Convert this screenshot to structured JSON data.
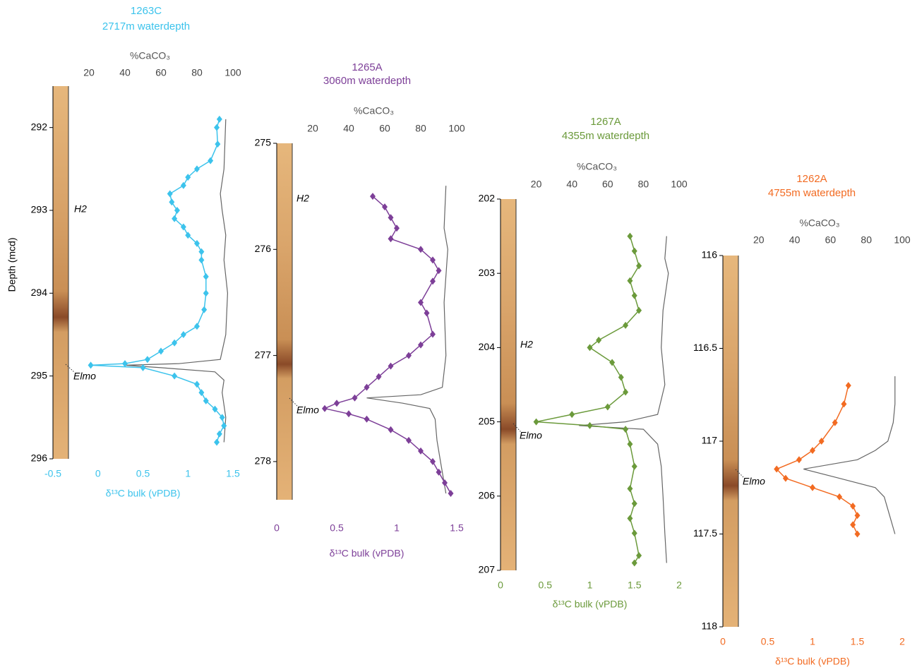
{
  "chart_data": [
    {
      "type": "line",
      "title": "1263C",
      "subtitle": "2717m waterdepth",
      "ylabel": "Depth (mcd)",
      "xlabel": "δ¹³C bulk (vPDB)",
      "x2label": "%CaCO₃",
      "ylim": [
        291.5,
        296
      ],
      "yticks": [
        292,
        293,
        294,
        295,
        296
      ],
      "xlim": [
        -0.5,
        1.5
      ],
      "xticks": [
        -0.5,
        0,
        0.5,
        1,
        1.5
      ],
      "x2lim": [
        0,
        100
      ],
      "x2ticks": [
        20,
        40,
        60,
        80,
        100
      ],
      "annotations": [
        "H2",
        "Elmo"
      ],
      "series": [
        {
          "color": "#3cc3ec",
          "axis": "x",
          "depth": [
            291.9,
            292.0,
            292.2,
            292.4,
            292.5,
            292.6,
            292.7,
            292.8,
            292.9,
            293.0,
            293.1,
            293.2,
            293.3,
            293.4,
            293.5,
            293.6,
            293.8,
            294.0,
            294.2,
            294.4,
            294.5,
            294.6,
            294.7,
            294.8,
            294.85,
            294.87,
            294.9,
            295.0,
            295.1,
            295.2,
            295.3,
            295.4,
            295.5,
            295.6,
            295.7,
            295.8
          ],
          "values": [
            1.35,
            1.32,
            1.33,
            1.25,
            1.1,
            1.0,
            0.95,
            0.8,
            0.82,
            0.88,
            0.85,
            0.95,
            1.0,
            1.1,
            1.15,
            1.15,
            1.2,
            1.2,
            1.18,
            1.1,
            0.95,
            0.85,
            0.7,
            0.55,
            0.3,
            -0.08,
            0.5,
            0.85,
            1.1,
            1.15,
            1.2,
            1.3,
            1.38,
            1.4,
            1.35,
            1.32
          ]
        },
        {
          "color": "#666666",
          "axis": "x2",
          "depth": [
            291.9,
            292.5,
            292.8,
            293.0,
            293.3,
            293.6,
            294.0,
            294.5,
            294.8,
            294.85,
            294.87,
            294.9,
            294.95,
            295.05,
            295.2,
            295.5,
            295.8
          ],
          "values": [
            96,
            95,
            93,
            94,
            96,
            95,
            97,
            96,
            93,
            70,
            40,
            60,
            90,
            95,
            94,
            96,
            95
          ]
        }
      ]
    },
    {
      "type": "line",
      "title": "1265A",
      "subtitle": "3060m waterdepth",
      "xlabel": "δ¹³C bulk (vPDB)",
      "x2label": "%CaCO₃",
      "ylim": [
        275,
        278.36
      ],
      "yticks": [
        275,
        276,
        277,
        278
      ],
      "xlim": [
        0,
        1.5
      ],
      "xticks": [
        0,
        0.5,
        1,
        1.5
      ],
      "x2lim": [
        0,
        100
      ],
      "x2ticks": [
        20,
        40,
        60,
        80,
        100
      ],
      "annotations": [
        "H2",
        "Elmo"
      ],
      "series": [
        {
          "color": "#7d3f98",
          "axis": "x",
          "depth": [
            275.5,
            275.6,
            275.7,
            275.8,
            275.9,
            276.0,
            276.1,
            276.2,
            276.3,
            276.5,
            276.6,
            276.8,
            276.9,
            277.0,
            277.1,
            277.2,
            277.3,
            277.4,
            277.45,
            277.5,
            277.55,
            277.6,
            277.7,
            277.8,
            277.9,
            278.0,
            278.1,
            278.2,
            278.3
          ],
          "values": [
            0.8,
            0.9,
            0.95,
            1.0,
            0.95,
            1.2,
            1.3,
            1.35,
            1.3,
            1.2,
            1.25,
            1.3,
            1.2,
            1.1,
            0.95,
            0.85,
            0.75,
            0.65,
            0.5,
            0.4,
            0.6,
            0.75,
            0.95,
            1.1,
            1.2,
            1.3,
            1.35,
            1.4,
            1.45
          ]
        },
        {
          "color": "#666666",
          "axis": "x2",
          "depth": [
            275.4,
            275.8,
            276.0,
            276.5,
            277.0,
            277.3,
            277.37,
            277.4,
            277.45,
            277.5,
            277.6,
            277.8,
            278.0,
            278.3
          ],
          "values": [
            94,
            93,
            95,
            93,
            94,
            92,
            80,
            50,
            70,
            85,
            88,
            89,
            91,
            94
          ]
        }
      ]
    },
    {
      "type": "line",
      "title": "1267A",
      "subtitle": "4355m waterdepth",
      "xlabel": "δ¹³C bulk (vPDB)",
      "x2label": "%CaCO₃",
      "ylim": [
        202,
        207
      ],
      "yticks": [
        202,
        203,
        204,
        205,
        206,
        207
      ],
      "xlim": [
        0,
        2
      ],
      "xticks": [
        0,
        0.5,
        1,
        1.5,
        2
      ],
      "x2lim": [
        0,
        100
      ],
      "x2ticks": [
        20,
        40,
        60,
        80,
        100
      ],
      "annotations": [
        "H2",
        "Elmo"
      ],
      "series": [
        {
          "color": "#6b9a3b",
          "axis": "x",
          "depth": [
            202.5,
            202.7,
            202.9,
            203.1,
            203.3,
            203.5,
            203.7,
            203.9,
            204.0,
            204.2,
            204.4,
            204.6,
            204.8,
            204.9,
            205.0,
            205.05,
            205.1,
            205.3,
            205.6,
            205.9,
            206.1,
            206.3,
            206.5,
            206.8,
            206.9
          ],
          "values": [
            1.45,
            1.5,
            1.55,
            1.45,
            1.5,
            1.55,
            1.4,
            1.1,
            1.0,
            1.25,
            1.35,
            1.4,
            1.2,
            0.8,
            0.4,
            1.0,
            1.4,
            1.45,
            1.5,
            1.45,
            1.5,
            1.45,
            1.5,
            1.55,
            1.5
          ]
        },
        {
          "color": "#666666",
          "axis": "x2",
          "depth": [
            202.5,
            202.8,
            203.0,
            203.5,
            204.0,
            204.5,
            204.9,
            205.0,
            205.05,
            205.1,
            205.3,
            205.6,
            206.0,
            206.5,
            206.9
          ],
          "values": [
            93,
            92,
            94,
            91,
            90,
            92,
            88,
            70,
            44,
            80,
            88,
            90,
            91,
            92,
            93
          ]
        }
      ]
    },
    {
      "type": "line",
      "title": "1262A",
      "subtitle": "4755m waterdepth",
      "xlabel": "δ¹³C bulk (vPDB)",
      "x2label": "%CaCO₃",
      "ylim": [
        116,
        118
      ],
      "yticks": [
        116,
        116.5,
        117,
        117.5,
        118
      ],
      "xlim": [
        0,
        2
      ],
      "xticks": [
        0,
        0.5,
        1,
        1.5,
        2
      ],
      "x2lim": [
        0,
        100
      ],
      "x2ticks": [
        20,
        40,
        60,
        80,
        100
      ],
      "annotations": [
        "Elmo"
      ],
      "series": [
        {
          "color": "#f26b22",
          "axis": "x",
          "depth": [
            116.7,
            116.8,
            116.9,
            117.0,
            117.05,
            117.1,
            117.15,
            117.2,
            117.25,
            117.3,
            117.35,
            117.4,
            117.45,
            117.5
          ],
          "values": [
            1.4,
            1.35,
            1.25,
            1.1,
            1.0,
            0.85,
            0.6,
            0.7,
            1.0,
            1.3,
            1.45,
            1.5,
            1.45,
            1.5
          ]
        },
        {
          "color": "#666666",
          "axis": "x2",
          "depth": [
            116.65,
            116.8,
            116.9,
            117.0,
            117.05,
            117.1,
            117.15,
            117.2,
            117.25,
            117.3,
            117.4,
            117.5
          ],
          "values": [
            96,
            96,
            95,
            92,
            85,
            75,
            45,
            65,
            85,
            90,
            93,
            96
          ]
        }
      ]
    }
  ]
}
